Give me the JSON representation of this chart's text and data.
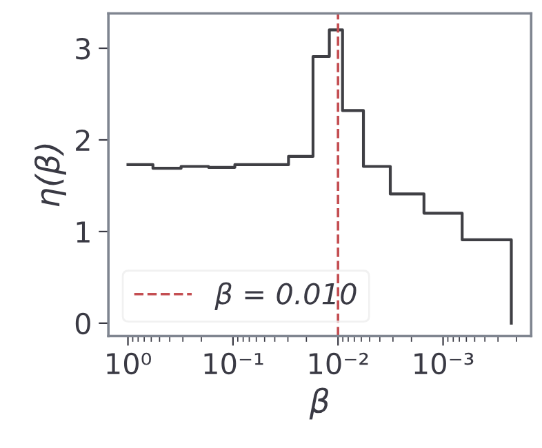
{
  "chart_data": {
    "type": "step",
    "xlabel": "β",
    "ylabel": "η(β)",
    "x": [
      1.0,
      0.578,
      0.312,
      0.171,
      0.096,
      0.0296,
      0.0173,
      0.0121,
      0.00906,
      0.00573,
      0.00318,
      0.00152,
      0.000658,
      0.000224
    ],
    "series": [
      {
        "color": "#3f3f44",
        "values": [
          1.73,
          1.69,
          1.71,
          1.7,
          1.73,
          1.82,
          2.91,
          3.2,
          2.32,
          1.71,
          1.41,
          1.2,
          0.91,
          0
        ]
      }
    ],
    "log": "x",
    "xlim": [
      1.535,
      0.000145
    ],
    "ylim": [
      -0.14,
      3.38
    ],
    "xticks": [
      {
        "value": 1,
        "label": "10⁰"
      },
      {
        "value": 0.1,
        "label": "10⁻¹"
      },
      {
        "value": 0.01,
        "label": "10⁻²"
      },
      {
        "value": 0.001,
        "label": "10⁻³"
      }
    ],
    "yticks": [
      0,
      1,
      2,
      3
    ],
    "ref_lines": [
      {
        "axis": "x",
        "value": 0.01,
        "label": "β = 0.010",
        "color": "#c44e52",
        "line_style": "dashed"
      }
    ],
    "legend": "lower left",
    "grid": false
  }
}
